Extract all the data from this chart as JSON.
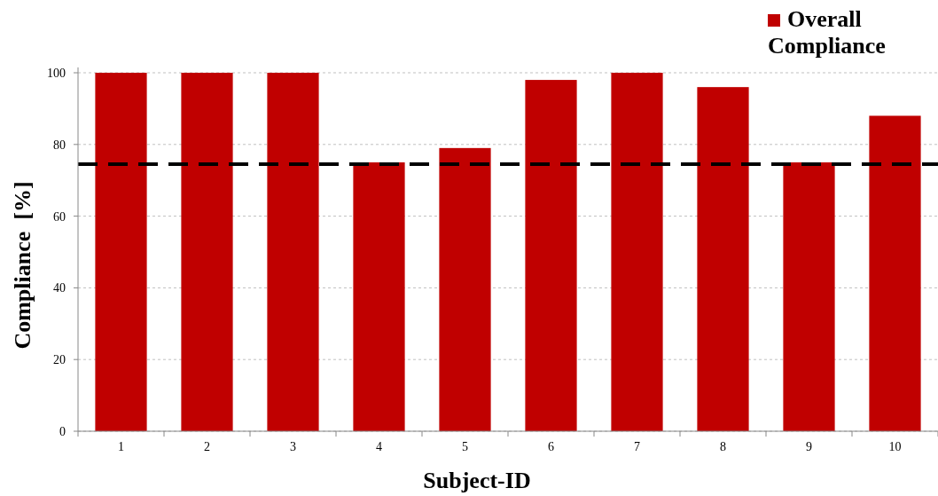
{
  "chart_data": {
    "type": "bar",
    "xlabel": "Subject-ID",
    "ylabel": "Compliance  [%]",
    "categories": [
      "1",
      "2",
      "3",
      "4",
      "5",
      "6",
      "7",
      "8",
      "9",
      "10"
    ],
    "series": [
      {
        "name": "Overall Compliance",
        "color": "#c00000",
        "values": [
          100,
          100,
          100,
          75,
          79,
          98,
          100,
          96,
          75,
          88
        ]
      }
    ],
    "ylim": [
      0,
      100
    ],
    "yticks": [
      0,
      20,
      40,
      60,
      80,
      100
    ],
    "grid": "y",
    "legend": "top right",
    "ref_lines": [
      {
        "axis": "y",
        "value": 74.5,
        "color": "#000000",
        "line_style": "dashed"
      }
    ]
  }
}
